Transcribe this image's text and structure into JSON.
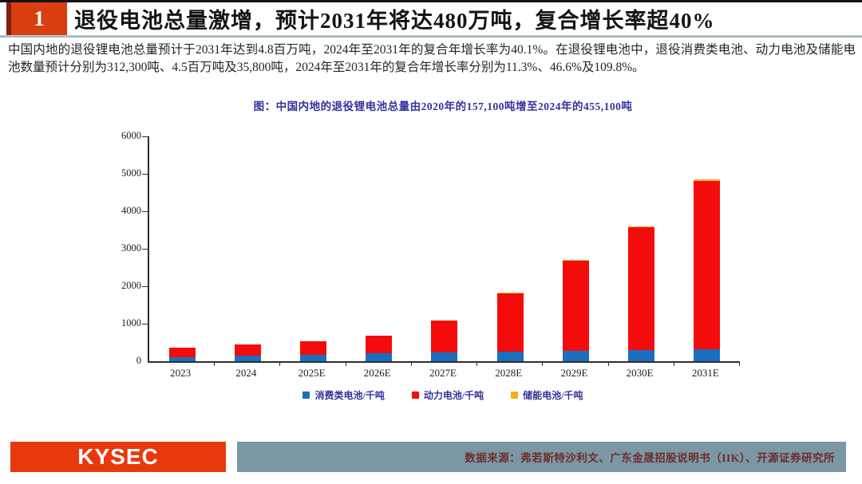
{
  "header": {
    "badge": "1",
    "title": "退役电池总量激增，预计2031年将达480万吨，复合增长率超40%"
  },
  "body": {
    "paragraph": "中国内地的退役锂电池总量预计于2031年达到4.8百万吨，2024年至2031年的复合年增长率为40.1%。在退役锂电池中，退役消费类电池、动力电池及储能电池数量预计分别为312,300吨、4.5百万吨及35,800吨，2024年至2031年的复合年增长率分别为11.3%、46.6%及109.8%。"
  },
  "chart_data": {
    "type": "bar",
    "stacked": true,
    "title": "图：中国内地的退役锂电池总量由2020年的157,100吨增至2024年的455,100吨",
    "categories": [
      "2023",
      "2024",
      "2025E",
      "2026E",
      "2027E",
      "2028E",
      "2029E",
      "2030E",
      "2031E"
    ],
    "series": [
      {
        "name": "消费类电池/千吨",
        "color": "#1a70be",
        "values": [
          110,
          148,
          180,
          207,
          232,
          252,
          268,
          288,
          312
        ]
      },
      {
        "name": "动力电池/千吨",
        "color": "#f40b0b",
        "values": [
          245,
          307,
          346,
          474,
          848,
          1560,
          2420,
          3293,
          4500
        ]
      },
      {
        "name": "储能电池/千吨",
        "color": "#f2b31a",
        "values": [
          0,
          0,
          1,
          2,
          4,
          8,
          14,
          22,
          36
        ]
      }
    ],
    "ylabel": "",
    "xlabel": "",
    "ylim": [
      0,
      6000
    ],
    "yticks": [
      0,
      1000,
      2000,
      3000,
      4000,
      5000,
      6000
    ],
    "grid": false,
    "legend_position": "bottom"
  },
  "footer": {
    "logo": "KYSEC",
    "source": "数据来源：弗若斯特沙利文、广东金晟招股说明书（IIK）、开源证券研究所"
  },
  "colors": {
    "accent_red": "#d93e10",
    "logo_red": "#e8390d",
    "footer_bar": "#7b97a6",
    "chart_title_navy": "#32329e"
  }
}
